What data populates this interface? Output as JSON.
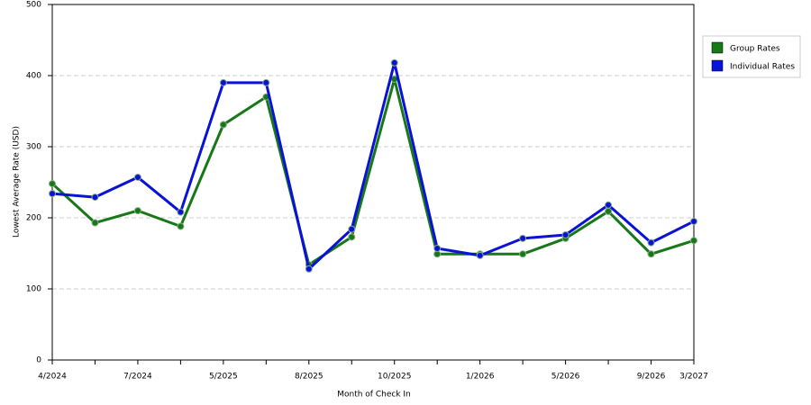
{
  "chart_data": {
    "type": "line",
    "x_label": "Month of Check In",
    "y_label": "Lowest Average Rate (USD)",
    "categories": [
      "4/2024",
      null,
      "7/2024",
      null,
      "5/2025",
      null,
      "8/2025",
      null,
      "10/2025",
      null,
      "1/2026",
      null,
      "5/2026",
      null,
      "9/2026",
      "3/2027"
    ],
    "series": [
      {
        "name": "Group Rates",
        "color": "#167816",
        "values": [
          248,
          193,
          210,
          188,
          331,
          370,
          134,
          173,
          395,
          149,
          149,
          149,
          171,
          209,
          149,
          168
        ]
      },
      {
        "name": "Individual Rates",
        "color": "#0a12d6",
        "values": [
          234,
          229,
          257,
          208,
          390,
          390,
          128,
          184,
          418,
          157,
          147,
          171,
          176,
          218,
          165,
          195
        ]
      }
    ],
    "ylim": [
      0,
      500
    ],
    "yticks": [
      0,
      100,
      200,
      300,
      400,
      500
    ],
    "grid": true,
    "legend": "right"
  }
}
